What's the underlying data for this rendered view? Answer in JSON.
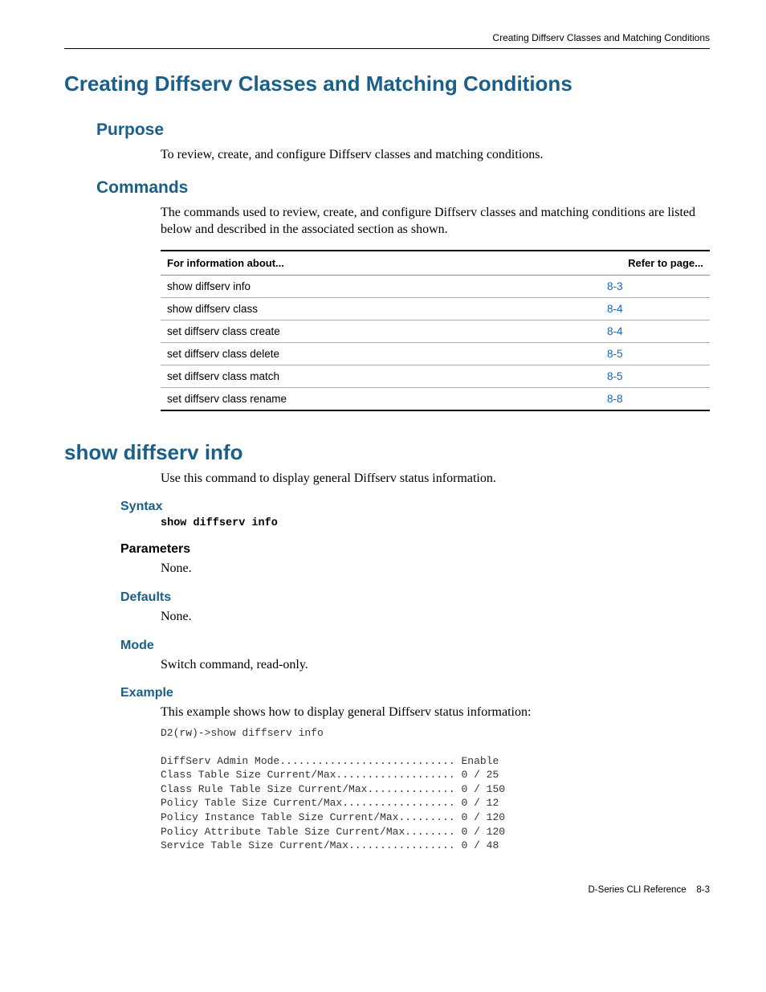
{
  "running_head": "Creating Diffserv Classes and Matching Conditions",
  "h1": "Creating Diffserv Classes and Matching Conditions",
  "purpose": {
    "heading": "Purpose",
    "text": "To review, create, and configure Diffserv classes and matching conditions."
  },
  "commands": {
    "heading": "Commands",
    "intro": "The commands used to review, create, and configure Diffserv classes and matching conditions are listed below and described in the associated section as shown.",
    "table": {
      "col1_header": "For information about...",
      "col2_header": "Refer to page...",
      "rows": [
        {
          "name": "show diffserv info",
          "page": "8-3"
        },
        {
          "name": "show diffserv class",
          "page": "8-4"
        },
        {
          "name": "set diffserv class create",
          "page": "8-4"
        },
        {
          "name": "set diffserv class delete",
          "page": "8-5"
        },
        {
          "name": "set diffserv class match",
          "page": "8-5"
        },
        {
          "name": "set diffserv class rename",
          "page": "8-8"
        }
      ]
    }
  },
  "command_detail": {
    "name": "show diffserv info",
    "desc": "Use this command to display general Diffserv status information.",
    "syntax": {
      "heading": "Syntax",
      "code": "show diffserv info"
    },
    "parameters": {
      "heading": "Parameters",
      "text": "None."
    },
    "defaults": {
      "heading": "Defaults",
      "text": "None."
    },
    "mode": {
      "heading": "Mode",
      "text": "Switch command, read-only."
    },
    "example": {
      "heading": "Example",
      "intro": "This example shows how to display general Diffserv status information:",
      "output": "D2(rw)->show diffserv info\n\nDiffServ Admin Mode............................ Enable\nClass Table Size Current/Max................... 0 / 25\nClass Rule Table Size Current/Max.............. 0 / 150\nPolicy Table Size Current/Max.................. 0 / 12\nPolicy Instance Table Size Current/Max......... 0 / 120\nPolicy Attribute Table Size Current/Max........ 0 / 120\nService Table Size Current/Max................. 0 / 48"
    }
  },
  "footer": {
    "doc": "D-Series CLI Reference",
    "page": "8-3"
  },
  "colors": {
    "heading_blue": "#1a5f8a",
    "link_blue": "#1563c1",
    "text": "#000000",
    "rule": "#000000"
  },
  "fonts": {
    "heading_family": "Arial, Helvetica, sans-serif",
    "body_family": "Palatino, Book Antiqua, Times New Roman, serif",
    "mono_family": "Courier New, monospace"
  }
}
